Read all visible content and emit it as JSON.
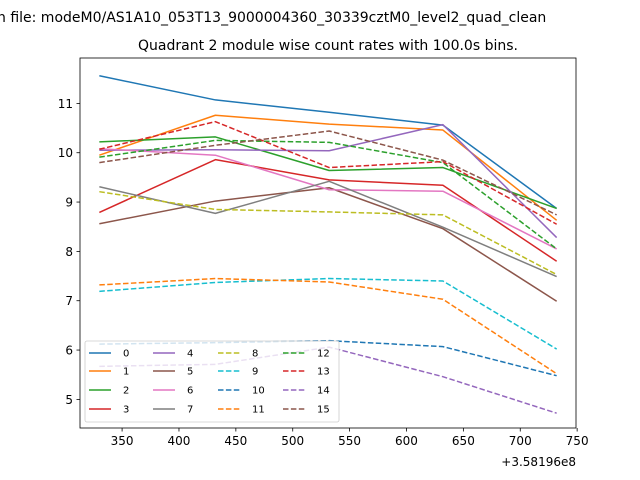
{
  "figure": {
    "suptitle": "n file: modeM0/AS1A10_053T13_9000004360_30339cztM0_level2_quad_clean",
    "offset_label": "+3.58196e8"
  },
  "chart_data": {
    "type": "line",
    "title": "Quadrant 2 module wise count rates with 100.0s bins.",
    "xlabel": "",
    "ylabel": "",
    "x": [
      330,
      432,
      532,
      632,
      732
    ],
    "x_offset": 358196000,
    "xlim": [
      313,
      749
    ],
    "ylim": [
      4.42,
      11.92
    ],
    "xticks": [
      350,
      400,
      450,
      500,
      550,
      600,
      650,
      700,
      750
    ],
    "yticks": [
      5,
      6,
      7,
      8,
      9,
      10,
      11
    ],
    "grid": false,
    "legend": {
      "placement": "lower left",
      "ncol": 4
    },
    "series": [
      {
        "name": "0",
        "color": "#1f77b4",
        "dash": "solid",
        "values": [
          11.56,
          11.07,
          10.82,
          10.56,
          8.87
        ]
      },
      {
        "name": "1",
        "color": "#ff7f0e",
        "dash": "solid",
        "values": [
          9.95,
          10.76,
          10.58,
          10.46,
          8.63
        ]
      },
      {
        "name": "2",
        "color": "#2ca02c",
        "dash": "solid",
        "values": [
          10.22,
          10.32,
          9.64,
          9.7,
          8.87
        ]
      },
      {
        "name": "3",
        "color": "#d62728",
        "dash": "solid",
        "values": [
          8.79,
          9.86,
          9.45,
          9.34,
          7.8
        ]
      },
      {
        "name": "4",
        "color": "#9467bd",
        "dash": "solid",
        "values": [
          10.05,
          10.06,
          10.04,
          10.57,
          8.28
        ]
      },
      {
        "name": "5",
        "color": "#8c564b",
        "dash": "solid",
        "values": [
          8.56,
          9.02,
          9.29,
          8.46,
          6.99
        ]
      },
      {
        "name": "6",
        "color": "#e377c2",
        "dash": "solid",
        "values": [
          10.08,
          9.95,
          9.25,
          9.22,
          8.05
        ]
      },
      {
        "name": "7",
        "color": "#7f7f7f",
        "dash": "solid",
        "values": [
          9.31,
          8.77,
          9.42,
          8.49,
          7.49
        ]
      },
      {
        "name": "8",
        "color": "#bcbd22",
        "dash": "dashed",
        "values": [
          9.21,
          8.85,
          8.8,
          8.74,
          7.53
        ]
      },
      {
        "name": "9",
        "color": "#17becf",
        "dash": "dashed",
        "values": [
          7.19,
          7.37,
          7.45,
          7.4,
          6.02
        ]
      },
      {
        "name": "10",
        "color": "#1f77b4",
        "dash": "dashed",
        "values": [
          6.12,
          6.15,
          6.19,
          6.07,
          5.48
        ]
      },
      {
        "name": "11",
        "color": "#ff7f0e",
        "dash": "dashed",
        "values": [
          7.32,
          7.45,
          7.38,
          7.03,
          5.52
        ]
      },
      {
        "name": "12",
        "color": "#2ca02c",
        "dash": "dashed",
        "values": [
          9.91,
          10.25,
          10.21,
          9.8,
          8.05
        ]
      },
      {
        "name": "13",
        "color": "#d62728",
        "dash": "dashed",
        "values": [
          10.07,
          10.63,
          9.7,
          9.82,
          8.55
        ]
      },
      {
        "name": "14",
        "color": "#9467bd",
        "dash": "dashed",
        "values": [
          5.67,
          5.71,
          6.06,
          5.46,
          4.72
        ]
      },
      {
        "name": "15",
        "color": "#8c564b",
        "dash": "dashed",
        "values": [
          9.8,
          10.15,
          10.44,
          9.85,
          8.74
        ]
      }
    ]
  }
}
